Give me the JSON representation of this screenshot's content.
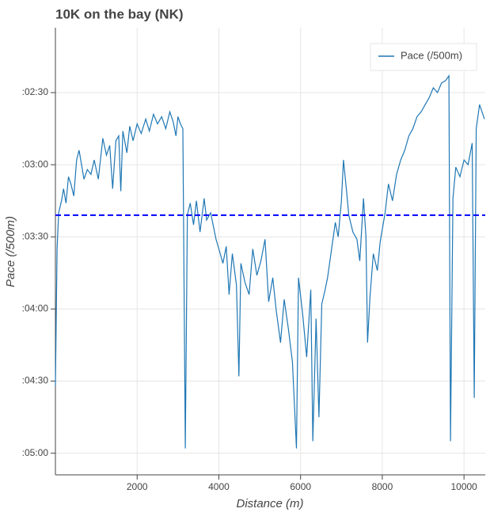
{
  "chart_data": {
    "type": "line",
    "title": "10K on the bay (NK)",
    "xlabel": "Distance (m)",
    "ylabel": "Pace (/500m)",
    "x": [
      0,
      40,
      80,
      150,
      200,
      260,
      320,
      380,
      450,
      520,
      580,
      640,
      700,
      780,
      870,
      950,
      1050,
      1160,
      1250,
      1330,
      1400,
      1480,
      1550,
      1600,
      1650,
      1750,
      1820,
      1900,
      2000,
      2100,
      2210,
      2300,
      2400,
      2500,
      2600,
      2700,
      2800,
      2880,
      2950,
      3000,
      3060,
      3120,
      3180,
      3230,
      3300,
      3380,
      3450,
      3540,
      3640,
      3700,
      3800,
      3930,
      4000,
      4100,
      4180,
      4250,
      4330,
      4430,
      4490,
      4540,
      4640,
      4740,
      4830,
      4930,
      5030,
      5130,
      5220,
      5320,
      5400,
      5510,
      5600,
      5700,
      5800,
      5900,
      5950,
      6050,
      6150,
      6250,
      6300,
      6380,
      6450,
      6520,
      6600,
      6660,
      6760,
      6850,
      6920,
      7000,
      7050,
      7120,
      7180,
      7280,
      7380,
      7450,
      7540,
      7600,
      7640,
      7700,
      7780,
      7880,
      7950,
      8070,
      8150,
      8250,
      8350,
      8450,
      8550,
      8650,
      8750,
      8850,
      8950,
      9050,
      9150,
      9250,
      9350,
      9450,
      9550,
      9630,
      9670,
      9730,
      9800,
      9900,
      10000,
      10100,
      10200,
      10250,
      10300,
      10380,
      10440,
      10500
    ],
    "series": [
      {
        "name": "Pace (/500m)",
        "color": "#1f77b4",
        "values": [
          272,
          215,
          200,
          195,
          190,
          196,
          185,
          188,
          193,
          178,
          174,
          180,
          186,
          182,
          184,
          178,
          186,
          169,
          176,
          172,
          190,
          170,
          168,
          191,
          166,
          175,
          164,
          170,
          163,
          167,
          161,
          166,
          159,
          163,
          160,
          165,
          158,
          162,
          168,
          160,
          163,
          165,
          298,
          201,
          196,
          205,
          195,
          208,
          194,
          203,
          200,
          211,
          215,
          221,
          214,
          234,
          217,
          230,
          268,
          221,
          229,
          234,
          215,
          226,
          220,
          211,
          237,
          227,
          240,
          254,
          236,
          248,
          262,
          298,
          227,
          242,
          260,
          232,
          295,
          244,
          285,
          238,
          232,
          227,
          215,
          204,
          210,
          195,
          178,
          190,
          201,
          208,
          211,
          220,
          194,
          210,
          254,
          235,
          217,
          224,
          212,
          200,
          188,
          195,
          184,
          178,
          174,
          168,
          165,
          160,
          158,
          155,
          152,
          148,
          150,
          146,
          145,
          143,
          295,
          194,
          181,
          185,
          178,
          180,
          171,
          277,
          165,
          155,
          158,
          161
        ]
      }
    ],
    "hline": {
      "value": 201,
      "color": "#0000ff"
    },
    "xlim": [
      0,
      10520
    ],
    "ylim": [
      309,
      123
    ],
    "xticks": [
      2000,
      4000,
      6000,
      8000,
      10000
    ],
    "yticks": [
      {
        "value": 150,
        "label": ":02:30"
      },
      {
        "value": 180,
        "label": ":03:00"
      },
      {
        "value": 210,
        "label": ":03:30"
      },
      {
        "value": 240,
        "label": ":04:00"
      },
      {
        "value": 270,
        "label": ":04:30"
      },
      {
        "value": 300,
        "label": ":05:00"
      }
    ],
    "grid": true,
    "legend": "top-right"
  }
}
